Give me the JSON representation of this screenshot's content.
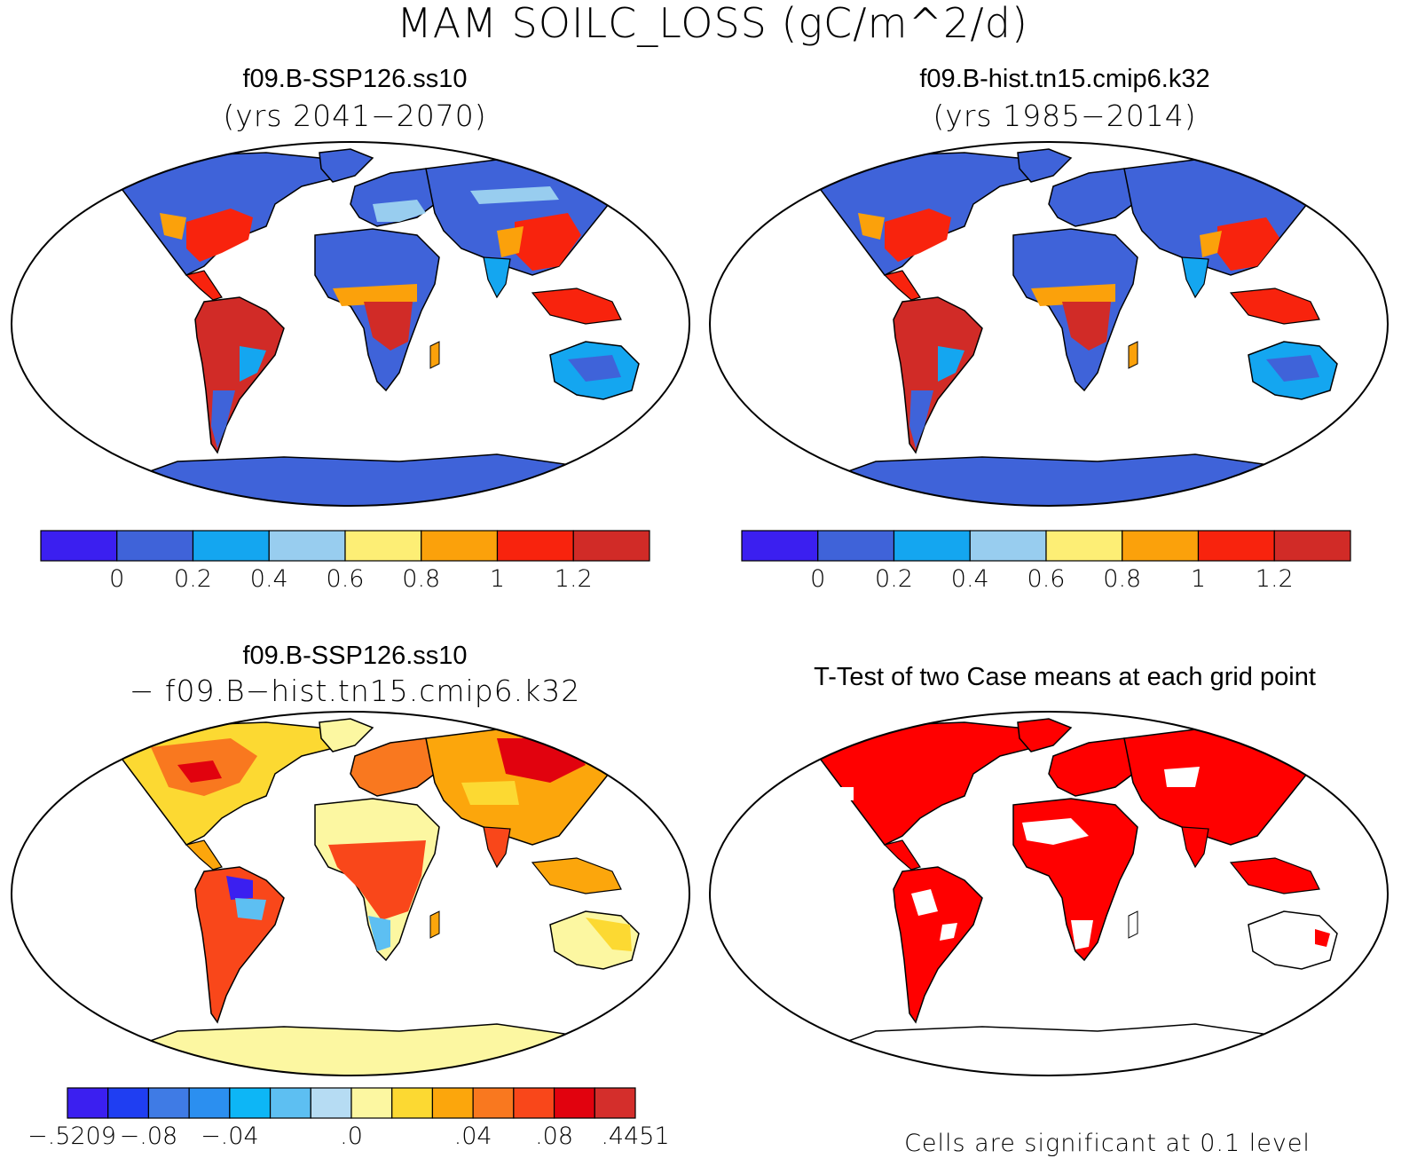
{
  "title": "MAM SOILC_LOSS (gC/m^2/d)",
  "panels": [
    {
      "case": "f09.B-SSP126.ss10",
      "subtitle": "(yrs 2041−2070)"
    },
    {
      "case": "f09.B-hist.tn15.cmip6.k32",
      "subtitle": "(yrs 1985−2014)"
    },
    {
      "case": "f09.B-SSP126.ss10",
      "subtitle": "− f09.B−hist.tn15.cmip6.k32"
    },
    {
      "case": "T-Test of two Case means at each grid point",
      "subtitle": ""
    }
  ],
  "colorbar_abs": {
    "colors": [
      "#3b1ff0",
      "#3f63d9",
      "#14a6f0",
      "#98cdef",
      "#fdee75",
      "#fba10b",
      "#f8230d",
      "#d12b27"
    ],
    "labels": [
      "0",
      "0.2",
      "0.4",
      "0.6",
      "0.8",
      "1",
      "1.2"
    ]
  },
  "colorbar_diff": {
    "colors": [
      "#3b1ff0",
      "#1f3ef2",
      "#3f7be5",
      "#2b8ff0",
      "#0db6f6",
      "#5dbff2",
      "#b6dcf3",
      "#fcf7a1",
      "#fcd932",
      "#fca60c",
      "#f9781f",
      "#f9471a",
      "#e1020e",
      "#d42e2b"
    ],
    "labels": [
      "−.5209",
      "−.08",
      "−.04",
      ".0",
      ".04",
      ".08",
      ".4451"
    ]
  },
  "significance_note": "Cells are significant at 0.1 level",
  "colors": {
    "ocean": "#ffffff",
    "land_outline": "#000000",
    "significant": "#ff0000",
    "antarctica_abs": "#3f63d9",
    "antarctica_diff": "#fcf7a1"
  }
}
